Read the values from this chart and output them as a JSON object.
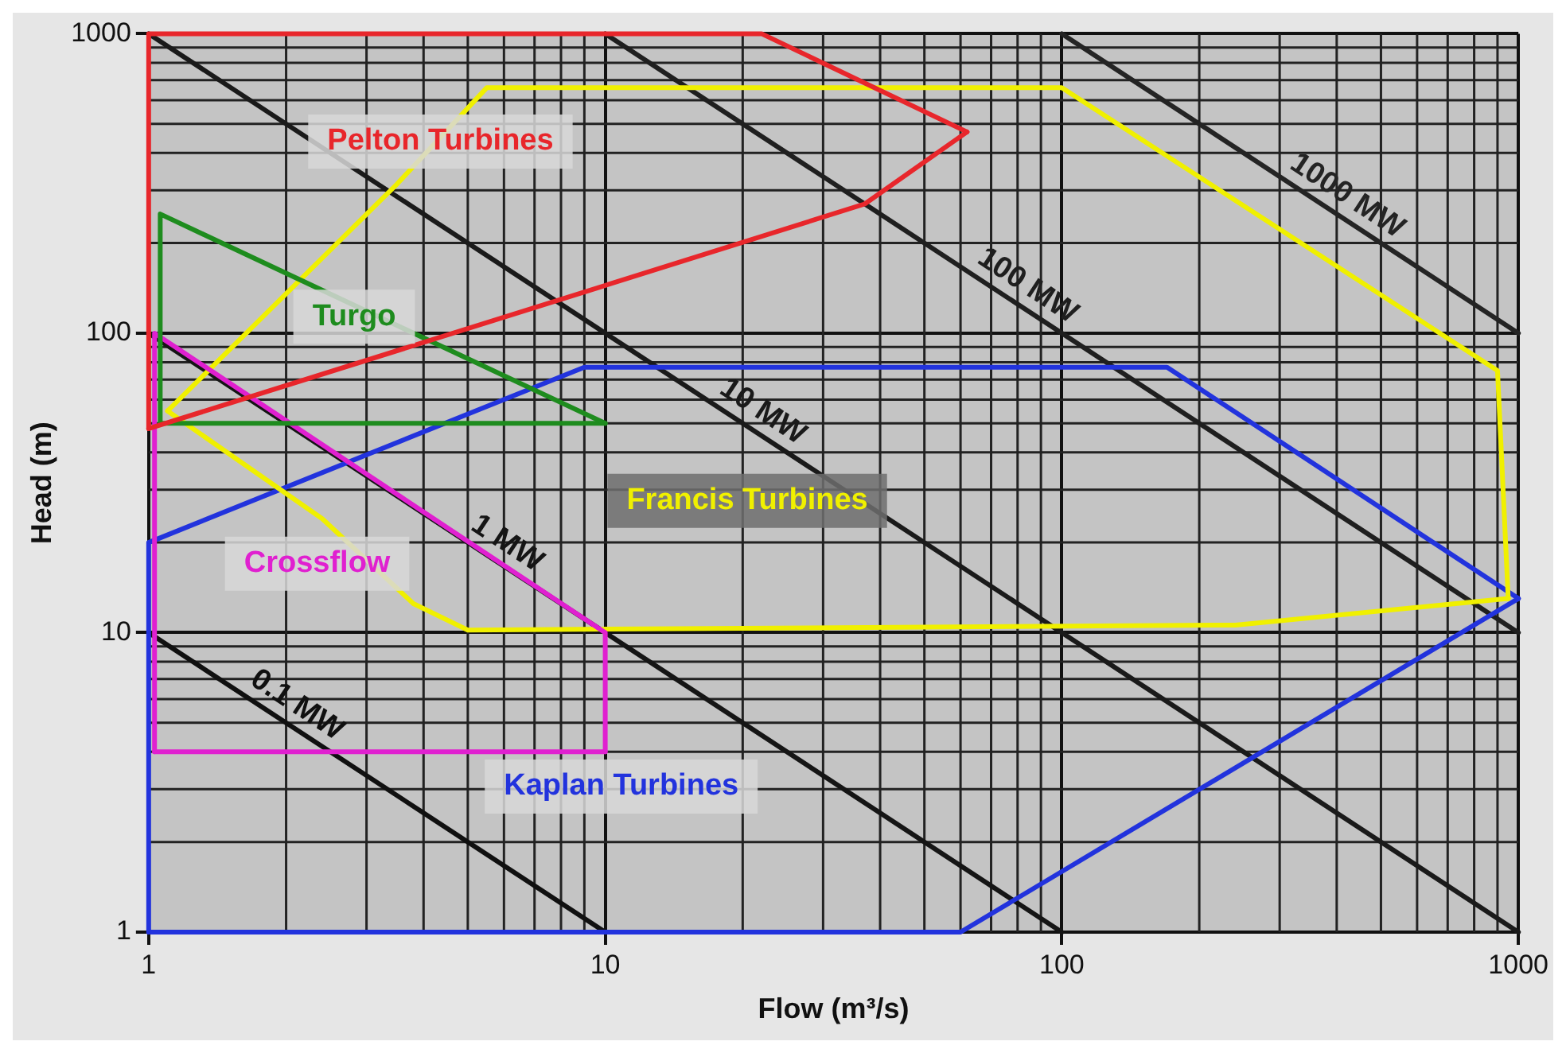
{
  "chart_data": {
    "type": "line",
    "xlabel": "Flow (m³/s)",
    "ylabel": "Head (m)",
    "log": "xy",
    "grid": true,
    "legend": false,
    "marker": "none",
    "line_style": "solid",
    "xlim": [
      1,
      1000
    ],
    "xticks": [
      1,
      10,
      100,
      1000
    ],
    "ylim": [
      1,
      1000
    ],
    "yticks": [
      1,
      10,
      100,
      1000
    ],
    "series": [
      {
        "name": "Pelton Turbines",
        "color": "#e8262b",
        "x": [
          1,
          1,
          22,
          62
        ],
        "values": [
          48,
          1000,
          1000,
          470
        ]
      },
      {
        "color": "#e8262b",
        "x": [
          1,
          37,
          62
        ],
        "values": [
          48,
          270,
          470
        ]
      },
      {
        "name": "Turgo",
        "color": "#1e8c1e",
        "x": [
          1.06,
          1.06,
          10
        ],
        "values": [
          50,
          250,
          50
        ]
      },
      {
        "color": "#1e8c1e",
        "x": [
          1.06,
          10
        ],
        "values": [
          50,
          50
        ]
      },
      {
        "name": "Crossflow",
        "color": "#e020d0",
        "x": [
          1.03,
          1.03,
          10,
          10
        ],
        "values": [
          4,
          100,
          10,
          4
        ]
      },
      {
        "color": "#e020d0",
        "x": [
          1.03,
          10
        ],
        "values": [
          4,
          4
        ]
      },
      {
        "name": "Francis Turbines",
        "color": "#f0f000",
        "x": [
          1.1,
          3.5,
          5.5,
          100,
          900,
          950
        ],
        "values": [
          55,
          315,
          660,
          660,
          75,
          13
        ]
      },
      {
        "color": "#f0f000",
        "x": [
          1.1,
          2.4,
          3.8,
          5,
          240,
          950
        ],
        "values": [
          55,
          24,
          12.5,
          10.2,
          10.6,
          13
        ]
      },
      {
        "name": "Kaplan Turbines",
        "color": "#2233dd",
        "x": [
          1,
          1,
          9,
          170,
          1000
        ],
        "values": [
          1,
          20,
          77,
          77,
          13
        ]
      },
      {
        "color": "#2233dd",
        "x": [
          1,
          60,
          1000
        ],
        "values": [
          1,
          1,
          13
        ]
      },
      {
        "name": "0.1 MW",
        "color": "#101010",
        "x": [
          1,
          10
        ],
        "values": [
          10,
          1
        ]
      },
      {
        "name": "1 MW",
        "color": "#151515",
        "x": [
          1,
          100
        ],
        "values": [
          100,
          1
        ]
      },
      {
        "name": "10 MW",
        "color": "#1a1a1a",
        "x": [
          1,
          1000
        ],
        "values": [
          1000,
          1
        ]
      },
      {
        "name": "100 MW",
        "color": "#1f1f1f",
        "x": [
          10,
          1000
        ],
        "values": [
          1000,
          10
        ]
      },
      {
        "name": "1000 MW",
        "color": "#242424",
        "x": [
          100,
          1000
        ],
        "values": [
          1000,
          100
        ]
      }
    ]
  }
}
